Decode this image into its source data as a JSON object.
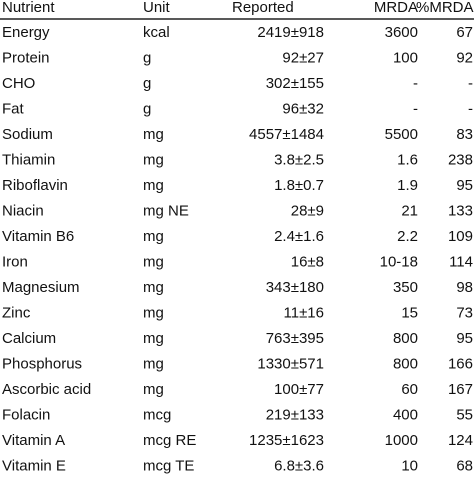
{
  "table": {
    "header": [
      "Nutrient",
      "Unit",
      "Reported",
      "MRDA",
      "%MRDA"
    ],
    "rows": [
      [
        "Energy",
        "kcal",
        "2419±918",
        "3600",
        "67"
      ],
      [
        "Protein",
        "g",
        "92±27",
        "100",
        "92"
      ],
      [
        "CHO",
        "g",
        "302±155",
        "-",
        "-"
      ],
      [
        "Fat",
        "g",
        "96±32",
        "-",
        "-"
      ],
      [
        "Sodium",
        "mg",
        "4557±1484",
        "5500",
        "83"
      ],
      [
        "Thiamin",
        "mg",
        "3.8±2.5",
        "1.6",
        "238"
      ],
      [
        "Riboflavin",
        "mg",
        "1.8±0.7",
        "1.9",
        "95"
      ],
      [
        "Niacin",
        "mg NE",
        "28±9",
        "21",
        "133"
      ],
      [
        "Vitamin B6",
        "mg",
        "2.4±1.6",
        "2.2",
        "109"
      ],
      [
        "Iron",
        "mg",
        "16±8",
        "10-18",
        "114"
      ],
      [
        "Magnesium",
        "mg",
        "343±180",
        "350",
        "98"
      ],
      [
        "Zinc",
        "mg",
        "11±16",
        "15",
        "73"
      ],
      [
        "Calcium",
        "mg",
        "763±395",
        "800",
        "95"
      ],
      [
        "Phosphorus",
        "mg",
        "1330±571",
        "800",
        "166"
      ],
      [
        "Ascorbic acid",
        "mg",
        "100±77",
        "60",
        "167"
      ],
      [
        "Folacin",
        "mcg",
        "219±133",
        "400",
        "55"
      ],
      [
        "Vitamin A",
        "mcg RE",
        "1235±1623",
        "1000",
        "124"
      ],
      [
        "Vitamin E",
        "mcg TE",
        "6.8±3.6",
        "10",
        "68"
      ]
    ]
  }
}
